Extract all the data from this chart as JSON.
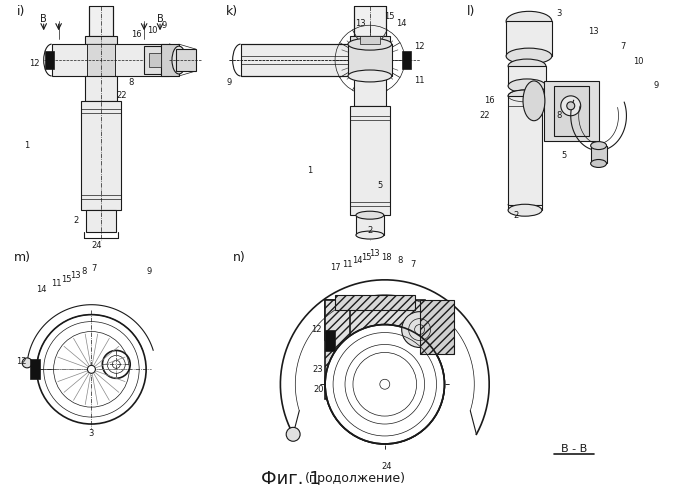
{
  "title": "Фиг. 1",
  "subtitle": "(продолжение)",
  "bg_color": "#ffffff",
  "line_color": "#1a1a1a",
  "label_fontsize": 6.5,
  "title_fontsize": 13,
  "subtitle_fontsize": 9,
  "bottom_label": "B - B"
}
